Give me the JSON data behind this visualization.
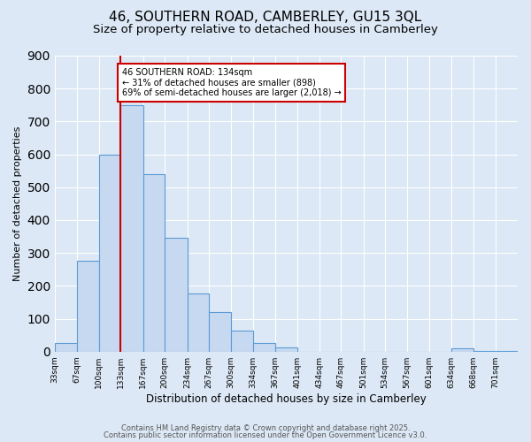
{
  "title": "46, SOUTHERN ROAD, CAMBERLEY, GU15 3QL",
  "subtitle": "Size of property relative to detached houses in Camberley",
  "xlabel": "Distribution of detached houses by size in Camberley",
  "ylabel": "Number of detached properties",
  "bin_labels": [
    "33sqm",
    "67sqm",
    "100sqm",
    "133sqm",
    "167sqm",
    "200sqm",
    "234sqm",
    "267sqm",
    "300sqm",
    "334sqm",
    "367sqm",
    "401sqm",
    "434sqm",
    "467sqm",
    "501sqm",
    "534sqm",
    "567sqm",
    "601sqm",
    "634sqm",
    "668sqm",
    "701sqm"
  ],
  "bar_values": [
    25,
    275,
    600,
    750,
    540,
    345,
    178,
    120,
    65,
    25,
    13,
    0,
    0,
    0,
    0,
    0,
    0,
    0,
    10,
    3,
    2
  ],
  "bar_color": "#c7d9f0",
  "bar_edge_color": "#5b9bd5",
  "vline_x_index": 3,
  "bin_edges": [
    33,
    67,
    100,
    133,
    167,
    200,
    234,
    267,
    300,
    334,
    367,
    401,
    434,
    467,
    501,
    534,
    567,
    601,
    634,
    668,
    701,
    735
  ],
  "ylim": [
    0,
    900
  ],
  "yticks": [
    0,
    100,
    200,
    300,
    400,
    500,
    600,
    700,
    800,
    900
  ],
  "annotation_text": "46 SOUTHERN ROAD: 134sqm\n← 31% of detached houses are smaller (898)\n69% of semi-detached houses are larger (2,018) →",
  "annotation_box_color": "#ffffff",
  "annotation_box_edge_color": "#cc0000",
  "vline_color": "#cc0000",
  "bg_color": "#dce8f5",
  "footer_line1": "Contains HM Land Registry data © Crown copyright and database right 2025.",
  "footer_line2": "Contains public sector information licensed under the Open Government Licence v3.0.",
  "title_fontsize": 11,
  "subtitle_fontsize": 9.5
}
